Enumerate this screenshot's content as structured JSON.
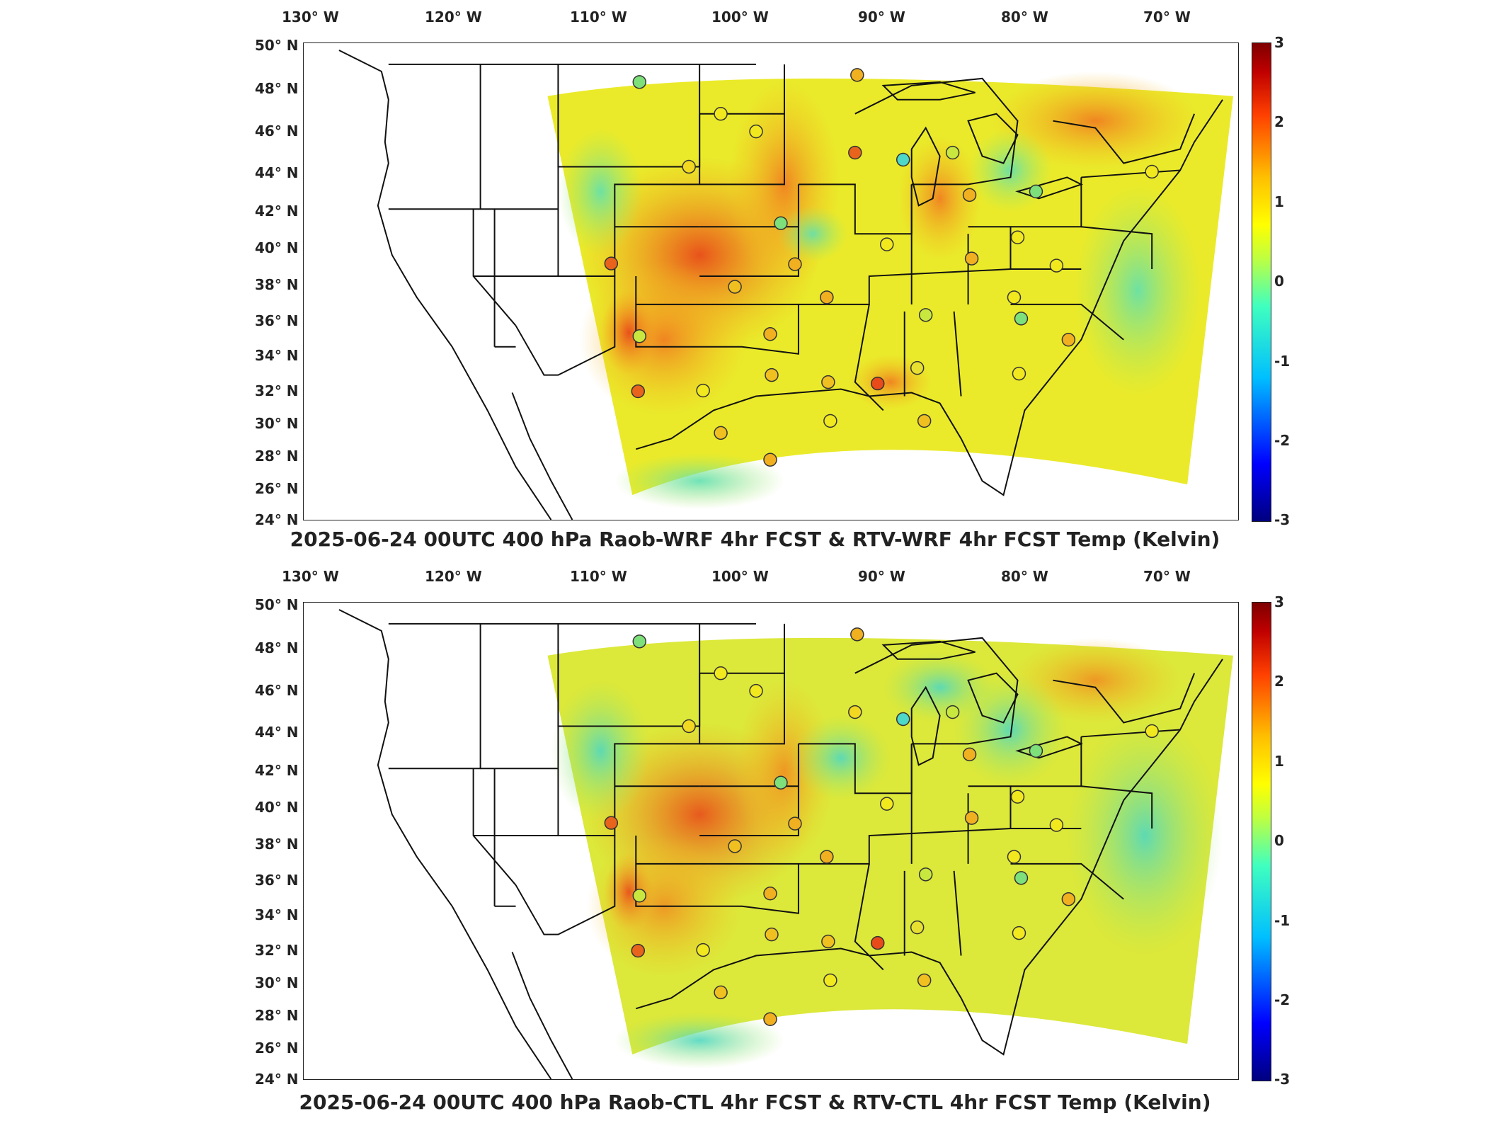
{
  "panels": [
    {
      "title": "2025-06-24 00UTC 400 hPa Raob-WRF 4hr FCST & RTV-WRF 4hr FCST Temp (Kelvin)"
    },
    {
      "title": "2025-06-24 00UTC 400 hPa Raob-CTL 4hr FCST & RTV-CTL 4hr FCST Temp (Kelvin)"
    }
  ],
  "lon_labels": [
    "130° W",
    "120° W",
    "110° W",
    "100° W",
    "90° W",
    "80° W",
    "70° W"
  ],
  "lat_labels": [
    "50° N",
    "48° N",
    "46° N",
    "44° N",
    "42° N",
    "40° N",
    "38° N",
    "36° N",
    "34° N",
    "32° N",
    "30° N",
    "28° N",
    "26° N",
    "24° N"
  ],
  "colorbar_ticks": [
    "3",
    "2",
    "1",
    "0",
    "-1",
    "-2",
    "-3"
  ],
  "colors": {
    "warm": "#e8641c",
    "hot": "#c8281e",
    "yellow": "#f2e81e",
    "green": "#7ee07a",
    "cyan": "#4ed8c8"
  }
}
